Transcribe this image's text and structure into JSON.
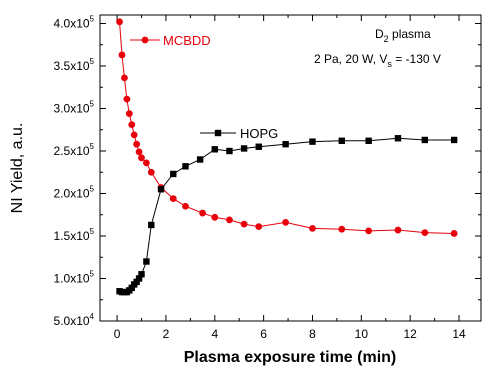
{
  "chart_data": {
    "type": "line",
    "title": "",
    "xlabel": "Plasma exposure time (min)",
    "ylabel": "NI Yield, a.u.",
    "xlim": [
      -0.7,
      14.9
    ],
    "ylim": [
      50000,
      410000
    ],
    "grid": false,
    "x_ticks": [
      {
        "value": 0,
        "label": "0"
      },
      {
        "value": 2,
        "label": "2"
      },
      {
        "value": 4,
        "label": "4"
      },
      {
        "value": 6,
        "label": "6"
      },
      {
        "value": 8,
        "label": "8"
      },
      {
        "value": 10,
        "label": "10"
      },
      {
        "value": 12,
        "label": "12"
      },
      {
        "value": 14,
        "label": "14"
      }
    ],
    "y_ticks": [
      {
        "value": 50000,
        "mantissa": "5.0x10",
        "exp": "4"
      },
      {
        "value": 100000,
        "mantissa": "1.0x10",
        "exp": "5"
      },
      {
        "value": 150000,
        "mantissa": "1.5x10",
        "exp": "5"
      },
      {
        "value": 200000,
        "mantissa": "2.0x10",
        "exp": "5"
      },
      {
        "value": 250000,
        "mantissa": "2.5x10",
        "exp": "5"
      },
      {
        "value": 300000,
        "mantissa": "3.0x10",
        "exp": "5"
      },
      {
        "value": 350000,
        "mantissa": "3.5x10",
        "exp": "5"
      },
      {
        "value": 400000,
        "mantissa": "4.0x10",
        "exp": "5"
      }
    ],
    "series": [
      {
        "name": "MCBDD",
        "color": "#e8000b",
        "marker": "circle",
        "x": [
          0.1,
          0.2,
          0.3,
          0.4,
          0.5,
          0.6,
          0.7,
          0.8,
          0.9,
          1.0,
          1.2,
          1.4,
          1.8,
          2.3,
          2.8,
          3.5,
          4.0,
          4.6,
          5.2,
          5.8,
          6.9,
          8.0,
          9.2,
          10.3,
          11.5,
          12.6,
          13.8
        ],
        "y": [
          402000,
          363000,
          336000,
          311000,
          294000,
          281000,
          269000,
          258000,
          249000,
          242000,
          236000,
          225000,
          207000,
          194000,
          185000,
          177000,
          172000,
          169000,
          164000,
          161000,
          166000,
          159000,
          158000,
          156000,
          157000,
          154000,
          153000
        ]
      },
      {
        "name": "HOPG",
        "color": "#000000",
        "marker": "square",
        "x": [
          0.1,
          0.2,
          0.3,
          0.4,
          0.5,
          0.6,
          0.7,
          0.8,
          0.9,
          1.0,
          1.2,
          1.4,
          1.8,
          2.3,
          2.8,
          3.4,
          4.0,
          4.6,
          5.2,
          5.8,
          6.9,
          8.0,
          9.2,
          10.3,
          11.5,
          12.6,
          13.8
        ],
        "y": [
          85000,
          84000,
          84000,
          84000,
          86000,
          89000,
          93000,
          96000,
          100000,
          105000,
          120000,
          163000,
          205000,
          223000,
          232000,
          240000,
          252000,
          250000,
          253000,
          255000,
          258000,
          261000,
          262000,
          262000,
          265000,
          263000,
          263000
        ]
      }
    ],
    "legend": [
      {
        "label": "MCBDD",
        "color": "#e8000b",
        "marker": "circle"
      },
      {
        "label": "HOPG",
        "color": "#000000",
        "marker": "square"
      }
    ],
    "annotations": {
      "line1_main": "D",
      "line1_sub": "2",
      "line1_rest": " plasma",
      "line2_main": "2 Pa, 20 W, V",
      "line2_sub": "s",
      "line2_rest": " = -130 V"
    }
  }
}
